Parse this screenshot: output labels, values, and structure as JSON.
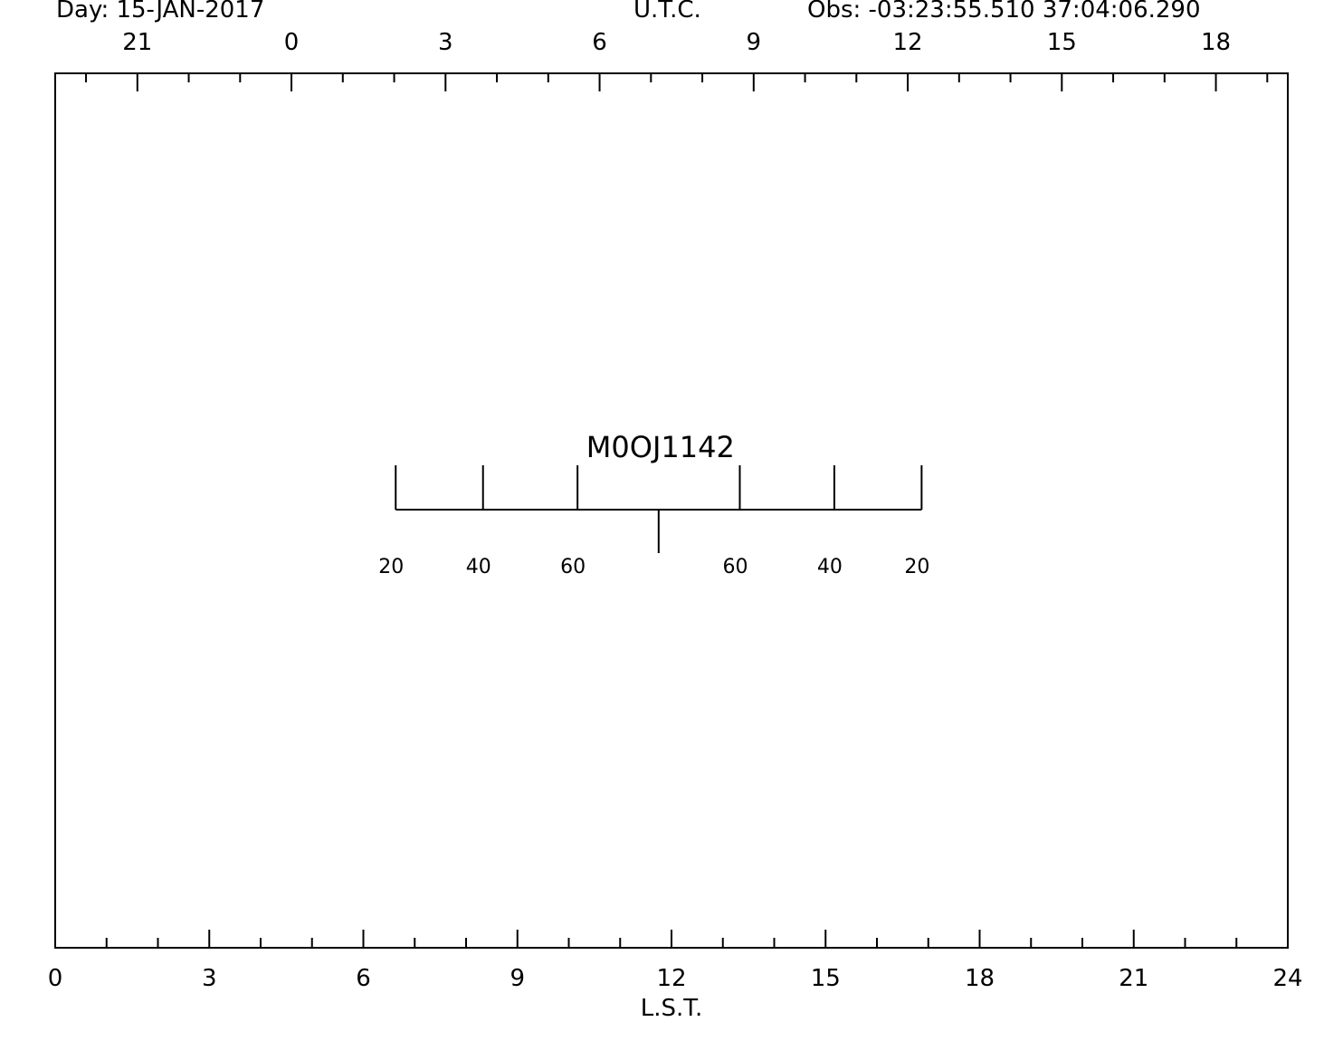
{
  "header": {
    "day": "Day: 15-JAN-2017",
    "utc_title": "U.T.C.",
    "observatory": "Obs: -03:23:55.510 37:04:06.290"
  },
  "chart_data": {
    "type": "transit-diagram",
    "title": "Day: 15-JAN-2017",
    "xlabel": "L.S.T.",
    "xlim": [
      0,
      24
    ],
    "x_ticks_bottom": [
      0,
      3,
      6,
      9,
      12,
      15,
      18,
      21,
      24
    ],
    "top_axis_label": "U.T.C.",
    "x_ticks_top": [
      18,
      21,
      0,
      3,
      6,
      9,
      12,
      15
    ],
    "utc_minus_lst_hours": -4.6,
    "grid": false,
    "source": {
      "name": "M0OJ1142",
      "transit_lst": 11.75,
      "elevation_marks": [
        {
          "label": "20",
          "lst": 6.63
        },
        {
          "label": "40",
          "lst": 8.33
        },
        {
          "label": "60",
          "lst": 10.17
        },
        {
          "label": "60",
          "lst": 13.33
        },
        {
          "label": "40",
          "lst": 15.17
        },
        {
          "label": "20",
          "lst": 16.87
        }
      ]
    }
  }
}
